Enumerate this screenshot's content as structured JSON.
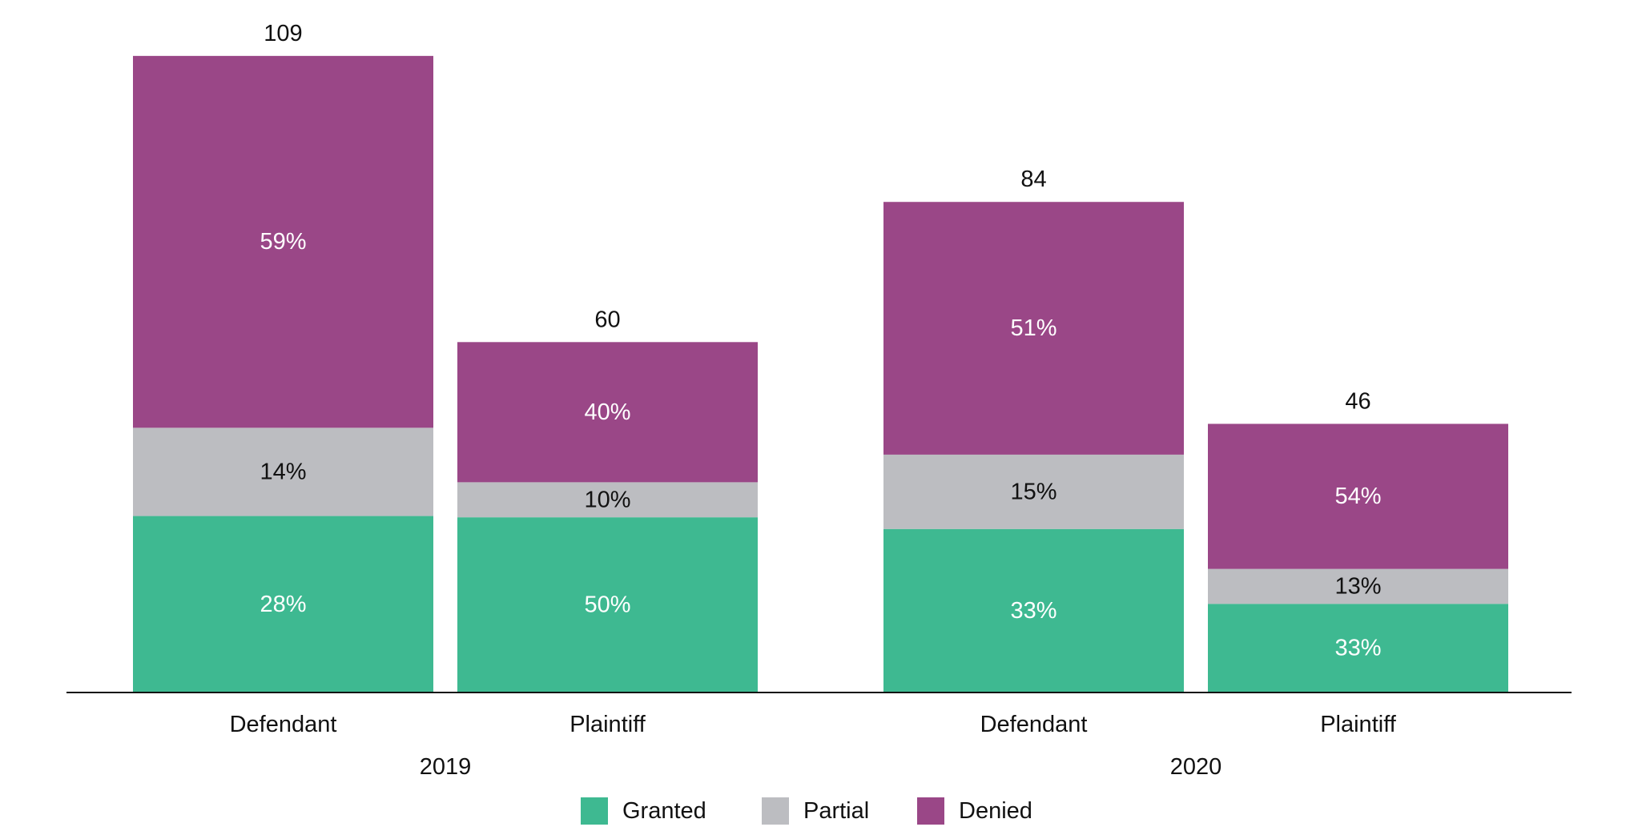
{
  "chart_data": {
    "type": "bar",
    "stacked": true,
    "groups": [
      {
        "label": "2019",
        "bars": [
          {
            "category": "Defendant",
            "total": 109,
            "granted": 28,
            "partial": 14,
            "denied": 59
          },
          {
            "category": "Plaintiff",
            "total": 60,
            "granted": 50,
            "partial": 10,
            "denied": 40
          }
        ]
      },
      {
        "label": "2020",
        "bars": [
          {
            "category": "Defendant",
            "total": 84,
            "granted": 33,
            "partial": 15,
            "denied": 51
          },
          {
            "category": "Plaintiff",
            "total": 46,
            "granted": 33,
            "partial": 13,
            "denied": 54
          }
        ]
      }
    ],
    "series": [
      {
        "key": "granted",
        "name": "Granted",
        "color": "#3eb991",
        "label_color": "#ffffff"
      },
      {
        "key": "partial",
        "name": "Partial",
        "color": "#bcbdc1",
        "label_color": "#111111"
      },
      {
        "key": "denied",
        "name": "Denied",
        "color": "#9a4787",
        "label_color": "#ffffff"
      }
    ],
    "value_suffix": "%",
    "legend_position": "bottom",
    "grid": false,
    "title": "",
    "xlabel": "",
    "ylabel": ""
  }
}
